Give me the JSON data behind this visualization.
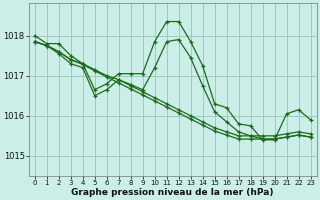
{
  "background_color": "#cceee8",
  "grid_color": "#99ccbb",
  "line_color": "#1a6b1a",
  "xlabel": "Graphe pression niveau de la mer (hPa)",
  "ylabel_ticks": [
    1015,
    1016,
    1017,
    1018
  ],
  "xlim": [
    -0.5,
    23.5
  ],
  "ylim": [
    1014.5,
    1018.8
  ],
  "xticks": [
    0,
    1,
    2,
    3,
    4,
    5,
    6,
    7,
    8,
    9,
    10,
    11,
    12,
    13,
    14,
    15,
    16,
    17,
    18,
    19,
    20,
    21,
    22,
    23
  ],
  "line1": [
    1018.0,
    1017.8,
    1017.8,
    1017.5,
    1017.3,
    1016.65,
    1016.8,
    1017.05,
    1017.05,
    1017.05,
    1017.85,
    1018.35,
    1018.35,
    1017.85,
    1017.25,
    1016.3,
    1016.2,
    1015.8,
    1015.75,
    1015.4,
    1015.4,
    1016.05,
    1016.15,
    1015.9
  ],
  "line2": [
    1017.85,
    1017.75,
    1017.6,
    1017.4,
    1017.3,
    1017.15,
    1017.0,
    1016.9,
    1016.75,
    1016.6,
    1016.45,
    1016.3,
    1016.15,
    1016.0,
    1015.85,
    1015.7,
    1015.6,
    1015.5,
    1015.5,
    1015.5,
    1015.5,
    1015.55,
    1015.6,
    1015.55
  ],
  "line3": [
    1017.85,
    1017.75,
    1017.6,
    1017.4,
    1017.28,
    1017.12,
    1016.97,
    1016.82,
    1016.67,
    1016.52,
    1016.37,
    1016.22,
    1016.07,
    1015.92,
    1015.77,
    1015.62,
    1015.52,
    1015.42,
    1015.42,
    1015.42,
    1015.42,
    1015.47,
    1015.52,
    1015.47
  ],
  "line4": [
    1017.85,
    1017.75,
    1017.55,
    1017.3,
    1017.2,
    1016.5,
    1016.65,
    1016.9,
    1016.78,
    1016.65,
    1017.2,
    1017.85,
    1017.9,
    1017.45,
    1016.75,
    1016.1,
    1015.85,
    1015.6,
    1015.5,
    1015.42,
    1015.42,
    1015.47,
    1015.52,
    1015.47
  ]
}
